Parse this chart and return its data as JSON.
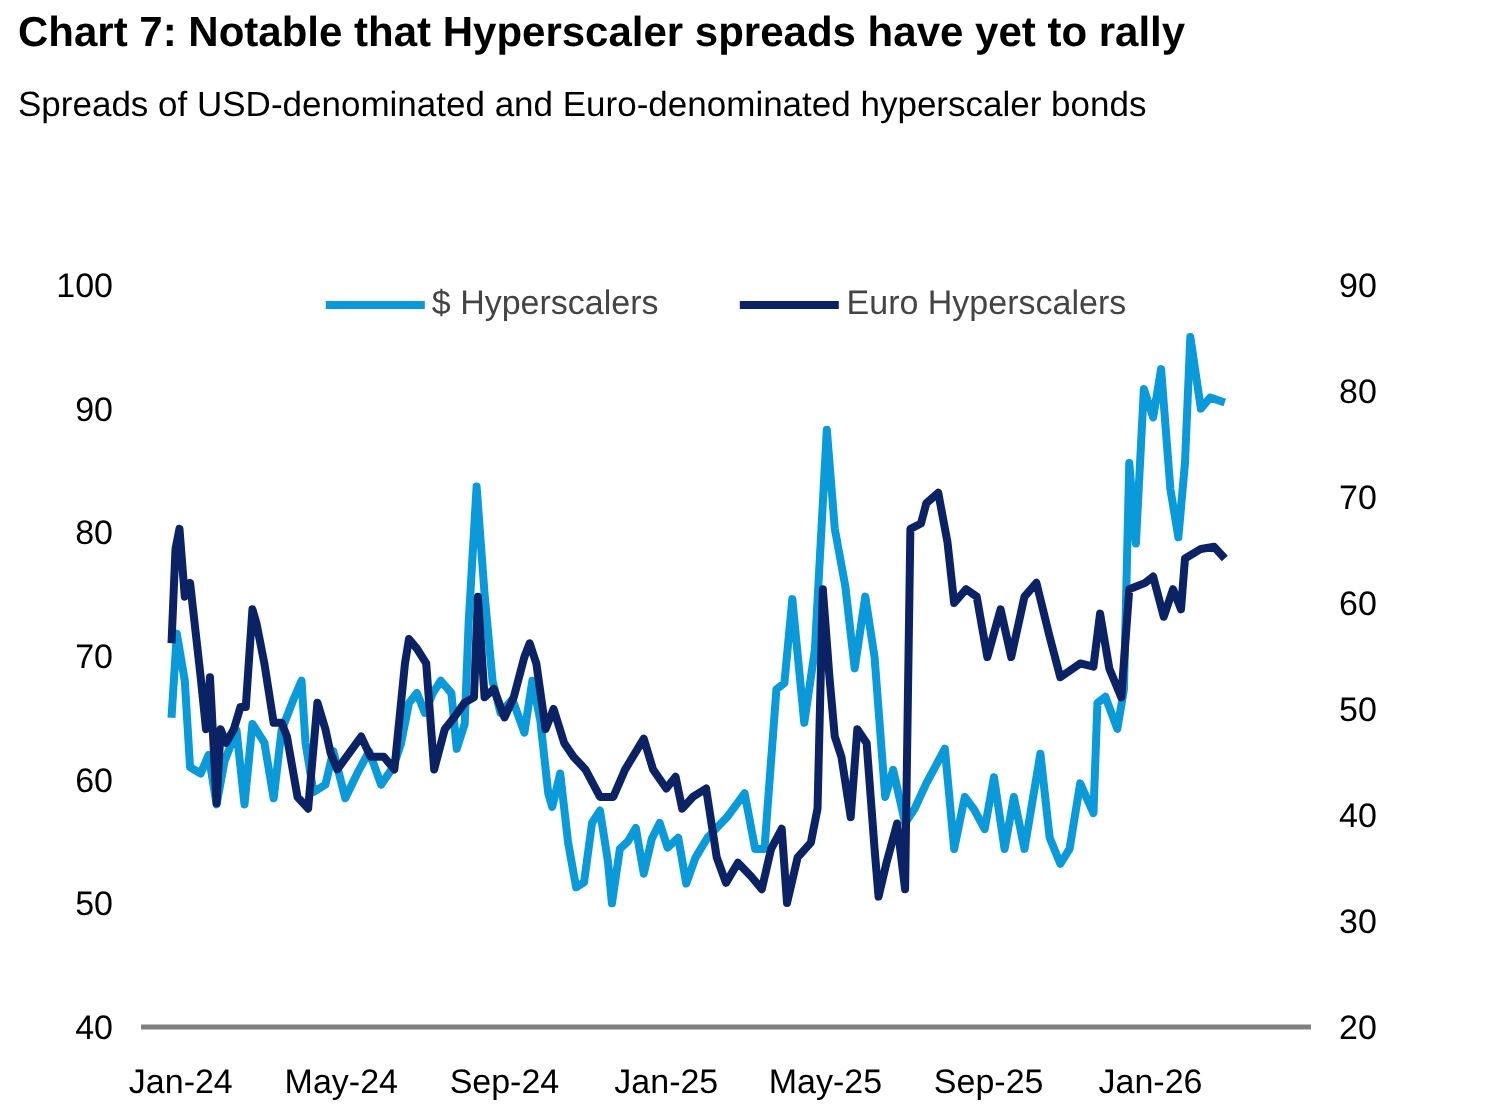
{
  "chart_data": {
    "type": "line",
    "title": "Chart 7: Notable that Hyperscaler spreads have yet to rally",
    "subtitle": "Spreads of USD-denominated and Euro-denominated hyperscaler bonds",
    "xlim": [
      "2023-12-02",
      "2026-05-02"
    ],
    "xticks": [
      {
        "value": "2024-01-01",
        "label": "Jan-24"
      },
      {
        "value": "2024-05-01",
        "label": "May-24"
      },
      {
        "value": "2024-09-01",
        "label": "Sep-24"
      },
      {
        "value": "2025-01-01",
        "label": "Jan-25"
      },
      {
        "value": "2025-05-01",
        "label": "May-25"
      },
      {
        "value": "2025-09-01",
        "label": "Sep-25"
      },
      {
        "value": "2026-01-01",
        "label": "Jan-26"
      }
    ],
    "ylim": [
      40,
      100
    ],
    "yticks": [
      40,
      50,
      60,
      70,
      80,
      90,
      100
    ],
    "y2lim": [
      20,
      90
    ],
    "y2ticks": [
      20,
      30,
      40,
      50,
      60,
      70,
      80,
      90
    ],
    "grid": false,
    "legend": "top",
    "line_style": "solid",
    "series": [
      {
        "name": "$ Hyperscalers",
        "color": "#0a9ad9",
        "x": [
          "2023-12-25",
          "2023-12-29",
          "2024-01-04",
          "2024-01-08",
          "2024-01-16",
          "2024-01-22",
          "2024-01-28",
          "2024-02-03",
          "2024-02-12",
          "2024-02-18",
          "2024-02-24",
          "2024-03-04",
          "2024-03-11",
          "2024-03-17",
          "2024-03-26",
          "2024-04-01",
          "2024-04-04",
          "2024-04-10",
          "2024-04-19",
          "2024-04-25",
          "2024-05-04",
          "2024-05-13",
          "2024-05-22",
          "2024-05-31",
          "2024-06-09",
          "2024-06-15",
          "2024-06-21",
          "2024-06-27",
          "2024-07-03",
          "2024-07-09",
          "2024-07-15",
          "2024-07-23",
          "2024-07-27",
          "2024-08-02",
          "2024-08-05",
          "2024-08-11",
          "2024-08-17",
          "2024-08-23",
          "2024-08-29",
          "2024-09-07",
          "2024-09-16",
          "2024-09-22",
          "2024-09-28",
          "2024-10-04",
          "2024-10-07",
          "2024-10-13",
          "2024-10-19",
          "2024-10-25",
          "2024-10-31",
          "2024-11-06",
          "2024-11-12",
          "2024-11-18",
          "2024-11-21",
          "2024-11-27",
          "2024-12-03",
          "2024-12-09",
          "2024-12-15",
          "2024-12-21",
          "2024-12-27",
          "2025-01-02",
          "2025-01-10",
          "2025-01-16",
          "2025-01-23",
          "2025-02-01",
          "2025-02-16",
          "2025-03-01",
          "2025-03-09",
          "2025-03-16",
          "2025-03-25",
          "2025-03-31",
          "2025-04-06",
          "2025-04-15",
          "2025-04-23",
          "2025-05-02",
          "2025-05-08",
          "2025-05-16",
          "2025-05-23",
          "2025-05-31",
          "2025-06-07",
          "2025-06-15",
          "2025-06-21",
          "2025-06-30",
          "2025-07-07",
          "2025-07-16",
          "2025-07-30",
          "2025-08-06",
          "2025-08-14",
          "2025-08-21",
          "2025-08-29",
          "2025-09-05",
          "2025-09-13",
          "2025-09-20",
          "2025-09-28",
          "2025-10-10",
          "2025-10-17",
          "2025-10-25",
          "2025-11-01",
          "2025-11-09",
          "2025-11-19",
          "2025-11-22",
          "2025-11-28",
          "2025-12-07",
          "2025-12-12",
          "2025-12-16",
          "2025-12-21",
          "2025-12-27",
          "2026-01-03",
          "2026-01-09",
          "2026-01-16",
          "2026-01-22",
          "2026-01-27",
          "2026-01-31",
          "2026-02-08",
          "2026-02-15",
          "2026-02-26"
        ],
        "values": [
          65,
          71.8,
          68,
          61,
          60.5,
          62,
          58,
          61.5,
          64,
          58,
          64.5,
          63,
          58.5,
          64,
          66.5,
          68,
          63,
          59,
          59.6,
          62.3,
          58.5,
          60.5,
          62.3,
          59.6,
          61,
          62.9,
          66.2,
          67,
          65.4,
          67,
          68,
          67,
          62.5,
          64.5,
          72.7,
          83.7,
          75,
          68,
          65.4,
          66.5,
          63.8,
          68,
          64.8,
          58.9,
          57.8,
          60.5,
          54.9,
          51.3,
          51.7,
          56.5,
          57.5,
          53.4,
          50,
          54.4,
          55,
          56.1,
          52.4,
          55.2,
          56.5,
          54.5,
          55.3,
          51.6,
          53.7,
          55.3,
          57,
          58.9,
          54.4,
          54.4,
          67.3,
          67.8,
          74.6,
          64.6,
          70.5,
          88.3,
          80.3,
          75.6,
          69,
          74.8,
          69.9,
          58.6,
          60.8,
          56.5,
          57.6,
          59.7,
          62.5,
          54.4,
          58.6,
          57.6,
          56,
          60.2,
          54.4,
          58.6,
          54.4,
          62.1,
          55.3,
          53.2,
          54.4,
          59.7,
          57.3,
          66.2,
          66.7,
          64.1,
          67.3,
          85.6,
          79.1,
          91.6,
          89.3,
          93.2,
          83.5,
          79.6,
          85.6,
          95.8,
          90,
          90.9,
          90.5
        ]
      },
      {
        "name": "Euro Hyperscalers",
        "color": "#0b2265",
        "axis": "y2",
        "x": [
          "2023-12-25",
          "2023-12-28",
          "2023-12-31",
          "2024-01-04",
          "2024-01-08",
          "2024-01-16",
          "2024-01-20",
          "2024-01-23",
          "2024-01-28",
          "2024-01-31",
          "2024-02-04",
          "2024-02-10",
          "2024-02-15",
          "2024-02-19",
          "2024-02-24",
          "2024-02-27",
          "2024-03-04",
          "2024-03-11",
          "2024-03-17",
          "2024-03-21",
          "2024-03-29",
          "2024-04-06",
          "2024-04-13",
          "2024-04-19",
          "2024-04-23",
          "2024-04-28",
          "2024-05-05",
          "2024-05-16",
          "2024-05-23",
          "2024-06-02",
          "2024-06-10",
          "2024-06-18",
          "2024-06-21",
          "2024-06-27",
          "2024-07-04",
          "2024-07-10",
          "2024-07-18",
          "2024-07-25",
          "2024-08-02",
          "2024-08-09",
          "2024-08-12",
          "2024-08-17",
          "2024-08-24",
          "2024-09-01",
          "2024-09-08",
          "2024-09-16",
          "2024-09-20",
          "2024-09-25",
          "2024-10-02",
          "2024-10-08",
          "2024-10-16",
          "2024-10-23",
          "2024-11-01",
          "2024-11-12",
          "2024-11-22",
          "2024-12-01",
          "2024-12-15",
          "2024-12-22",
          "2025-01-01",
          "2025-01-08",
          "2025-01-13",
          "2025-01-21",
          "2025-01-31",
          "2025-02-08",
          "2025-02-15",
          "2025-02-24",
          "2025-03-06",
          "2025-03-14",
          "2025-03-21",
          "2025-03-29",
          "2025-04-02",
          "2025-04-10",
          "2025-04-20",
          "2025-04-25",
          "2025-04-29",
          "2025-05-04",
          "2025-05-08",
          "2025-05-13",
          "2025-05-20",
          "2025-05-25",
          "2025-06-01",
          "2025-06-07",
          "2025-06-10",
          "2025-06-16",
          "2025-06-24",
          "2025-06-30",
          "2025-07-04",
          "2025-07-12",
          "2025-07-16",
          "2025-07-25",
          "2025-08-01",
          "2025-08-06",
          "2025-08-15",
          "2025-08-23",
          "2025-08-31",
          "2025-09-10",
          "2025-09-18",
          "2025-09-28",
          "2025-10-07",
          "2025-10-17",
          "2025-10-25",
          "2025-11-09",
          "2025-11-19",
          "2025-11-24",
          "2025-12-01",
          "2025-12-10",
          "2025-12-16",
          "2025-12-28",
          "2026-01-03",
          "2026-01-11",
          "2026-01-18",
          "2026-01-24",
          "2026-01-27",
          "2026-02-08",
          "2026-02-18",
          "2026-02-26"
        ],
        "values": [
          56.2,
          65.1,
          67,
          60.6,
          61.9,
          53,
          48.1,
          53,
          41.1,
          48.1,
          46.8,
          48.1,
          50.2,
          50.2,
          59.4,
          58.1,
          54.3,
          48.7,
          48.7,
          47.4,
          41.7,
          40.6,
          50.6,
          48.1,
          45.8,
          44.3,
          45.5,
          47.4,
          45.5,
          45.5,
          44.3,
          54.3,
          56.6,
          55.7,
          54.3,
          44.3,
          48.1,
          49.2,
          50.6,
          51.1,
          60.6,
          51.1,
          51.9,
          49.2,
          51.1,
          54.9,
          56.2,
          54.3,
          48.1,
          50,
          46.8,
          45.5,
          44.3,
          41.7,
          41.7,
          44.3,
          47.2,
          44.3,
          42.5,
          43.6,
          40.6,
          41.7,
          42.5,
          36,
          33.6,
          35.5,
          34.2,
          33,
          36.8,
          38.7,
          31.7,
          36,
          37.4,
          40.6,
          61.3,
          53,
          47.4,
          45.5,
          39.8,
          48.1,
          46.8,
          36.8,
          32.3,
          35.5,
          39.2,
          33,
          67,
          67.5,
          69.4,
          70.4,
          65.7,
          60,
          61.3,
          60.6,
          54.9,
          59.4,
          54.9,
          60.6,
          61.9,
          56.8,
          53,
          54.3,
          54,
          59,
          53.8,
          51.1,
          61.3,
          61.9,
          62.5,
          58.7,
          61.3,
          59.4,
          64.2,
          65.1,
          65.3,
          64.2
        ]
      }
    ]
  }
}
